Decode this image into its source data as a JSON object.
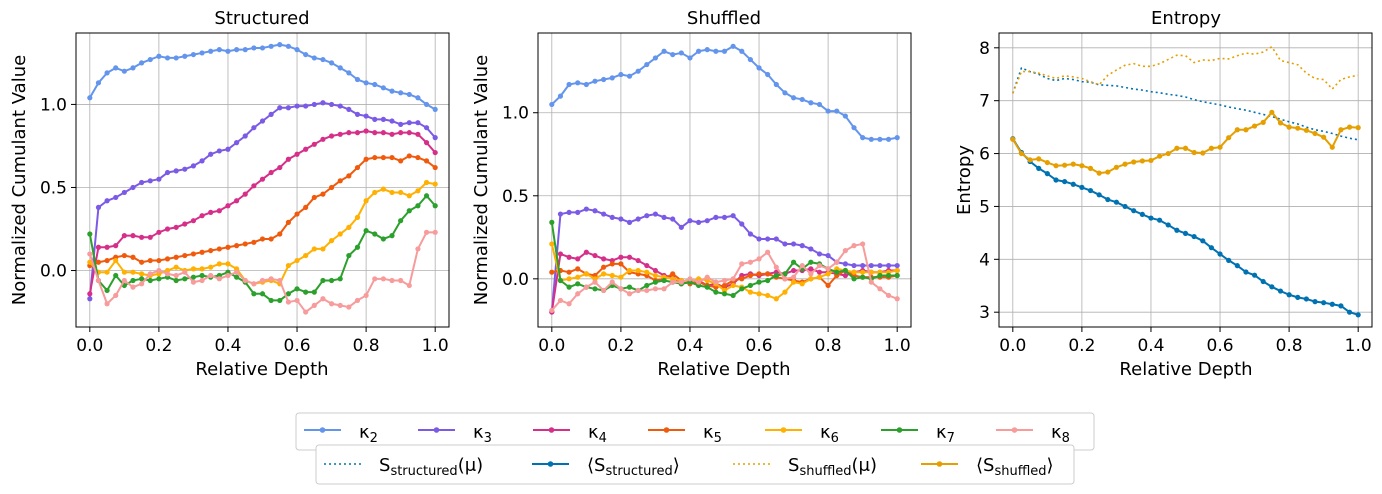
{
  "chart_data": [
    {
      "type": "line",
      "title": "Structured",
      "xlabel": "Relative Depth",
      "ylabel": "Normalized Cumulant Value",
      "xlim": [
        -0.04,
        1.04
      ],
      "ylim": [
        -0.34,
        1.43
      ],
      "xticks": [
        0.0,
        0.2,
        0.4,
        0.6,
        0.8,
        1.0
      ],
      "xtick_labels": [
        "0.0",
        "0.2",
        "0.4",
        "0.6",
        "0.8",
        "1.0"
      ],
      "yticks": [
        0.0,
        0.5,
        1.0
      ],
      "ytick_labels": [
        "0.0",
        "0.5",
        "1.0"
      ],
      "grid": true,
      "series": [
        {
          "name": "kappa_2",
          "color": "#6495ED",
          "marker": true,
          "style": "solid",
          "y": [
            1.04,
            1.13,
            1.19,
            1.22,
            1.2,
            1.22,
            1.25,
            1.27,
            1.29,
            1.28,
            1.28,
            1.29,
            1.3,
            1.31,
            1.32,
            1.33,
            1.32,
            1.33,
            1.33,
            1.34,
            1.34,
            1.35,
            1.36,
            1.35,
            1.33,
            1.3,
            1.28,
            1.27,
            1.25,
            1.22,
            1.19,
            1.15,
            1.13,
            1.12,
            1.1,
            1.08,
            1.07,
            1.06,
            1.04,
            1.0,
            0.97
          ]
        },
        {
          "name": "kappa_3",
          "color": "#7B5BE6",
          "marker": true,
          "style": "solid",
          "y": [
            -0.17,
            0.38,
            0.42,
            0.44,
            0.47,
            0.5,
            0.53,
            0.54,
            0.55,
            0.59,
            0.6,
            0.61,
            0.63,
            0.66,
            0.7,
            0.72,
            0.73,
            0.77,
            0.81,
            0.86,
            0.9,
            0.94,
            0.98,
            0.98,
            0.99,
            0.99,
            1.0,
            1.01,
            1.0,
            0.99,
            0.97,
            0.94,
            0.93,
            0.91,
            0.91,
            0.9,
            0.88,
            0.89,
            0.89,
            0.86,
            0.8
          ]
        },
        {
          "name": "kappa_4",
          "color": "#D62F8A",
          "marker": true,
          "style": "solid",
          "y": [
            -0.14,
            0.14,
            0.14,
            0.15,
            0.21,
            0.21,
            0.2,
            0.2,
            0.23,
            0.25,
            0.26,
            0.28,
            0.3,
            0.33,
            0.35,
            0.36,
            0.39,
            0.42,
            0.46,
            0.51,
            0.55,
            0.59,
            0.62,
            0.67,
            0.7,
            0.73,
            0.76,
            0.79,
            0.81,
            0.82,
            0.83,
            0.83,
            0.84,
            0.83,
            0.83,
            0.82,
            0.83,
            0.83,
            0.82,
            0.77,
            0.71
          ]
        },
        {
          "name": "kappa_5",
          "color": "#F05A0C",
          "marker": true,
          "style": "solid",
          "y": [
            0.03,
            0.05,
            0.06,
            0.08,
            0.09,
            0.08,
            0.05,
            0.06,
            0.06,
            0.07,
            0.08,
            0.09,
            0.1,
            0.11,
            0.12,
            0.13,
            0.14,
            0.15,
            0.16,
            0.17,
            0.19,
            0.19,
            0.22,
            0.29,
            0.34,
            0.38,
            0.44,
            0.46,
            0.5,
            0.54,
            0.57,
            0.62,
            0.67,
            0.68,
            0.68,
            0.68,
            0.66,
            0.69,
            0.68,
            0.66,
            0.62
          ]
        },
        {
          "name": "kappa_6",
          "color": "#FFB000",
          "marker": true,
          "style": "solid",
          "y": [
            0.05,
            -0.01,
            -0.01,
            0.06,
            -0.01,
            -0.01,
            -0.02,
            -0.03,
            -0.02,
            0.0,
            0.02,
            0.0,
            0.01,
            0.01,
            0.02,
            0.04,
            0.04,
            0.01,
            -0.06,
            -0.08,
            -0.07,
            -0.06,
            -0.08,
            0.03,
            0.06,
            0.09,
            0.13,
            0.13,
            0.18,
            0.22,
            0.26,
            0.32,
            0.42,
            0.47,
            0.49,
            0.47,
            0.47,
            0.45,
            0.48,
            0.53,
            0.52
          ]
        },
        {
          "name": "kappa_7",
          "color": "#2CA02C",
          "marker": true,
          "style": "solid",
          "y": [
            0.22,
            -0.06,
            -0.12,
            -0.03,
            -0.09,
            -0.06,
            -0.05,
            -0.06,
            -0.05,
            -0.04,
            -0.06,
            -0.05,
            -0.04,
            -0.03,
            -0.04,
            -0.03,
            -0.01,
            -0.04,
            -0.07,
            -0.14,
            -0.14,
            -0.18,
            -0.18,
            -0.14,
            -0.11,
            -0.13,
            -0.13,
            -0.06,
            -0.06,
            -0.05,
            0.09,
            0.14,
            0.24,
            0.22,
            0.19,
            0.21,
            0.3,
            0.36,
            0.39,
            0.45,
            0.39
          ]
        },
        {
          "name": "kappa_8",
          "color": "#F79B9B",
          "marker": true,
          "style": "solid",
          "y": [
            0.1,
            -0.06,
            -0.2,
            -0.15,
            -0.06,
            -0.1,
            -0.08,
            -0.02,
            0.0,
            -0.02,
            -0.03,
            -0.01,
            -0.07,
            -0.06,
            -0.03,
            -0.05,
            -0.03,
            -0.01,
            -0.06,
            -0.08,
            -0.06,
            -0.05,
            -0.06,
            -0.19,
            -0.18,
            -0.25,
            -0.21,
            -0.17,
            -0.2,
            -0.21,
            -0.22,
            -0.18,
            -0.15,
            -0.05,
            -0.05,
            -0.06,
            -0.06,
            -0.09,
            0.13,
            0.23,
            0.23
          ]
        }
      ]
    },
    {
      "type": "line",
      "title": "Shuffled",
      "xlabel": "Relative Depth",
      "ylabel": "Normalized Cumulant Value",
      "xlim": [
        -0.04,
        1.04
      ],
      "ylim": [
        -0.29,
        1.48
      ],
      "xticks": [
        0.0,
        0.2,
        0.4,
        0.6,
        0.8,
        1.0
      ],
      "xtick_labels": [
        "0.0",
        "0.2",
        "0.4",
        "0.6",
        "0.8",
        "1.0"
      ],
      "yticks": [
        0.0,
        0.5,
        1.0
      ],
      "ytick_labels": [
        "0.0",
        "0.5",
        "1.0"
      ],
      "grid": true,
      "series": [
        {
          "name": "kappa_2",
          "color": "#6495ED",
          "marker": true,
          "style": "solid",
          "y": [
            1.05,
            1.1,
            1.17,
            1.18,
            1.17,
            1.19,
            1.2,
            1.21,
            1.23,
            1.22,
            1.25,
            1.29,
            1.33,
            1.37,
            1.35,
            1.36,
            1.33,
            1.37,
            1.38,
            1.37,
            1.37,
            1.4,
            1.37,
            1.32,
            1.27,
            1.23,
            1.17,
            1.12,
            1.09,
            1.08,
            1.06,
            1.05,
            1.01,
            1.01,
            0.98,
            0.91,
            0.85,
            0.84,
            0.84,
            0.84,
            0.85
          ]
        },
        {
          "name": "kappa_3",
          "color": "#7B5BE6",
          "marker": true,
          "style": "solid",
          "y": [
            -0.2,
            0.39,
            0.4,
            0.4,
            0.42,
            0.41,
            0.39,
            0.37,
            0.36,
            0.34,
            0.36,
            0.38,
            0.39,
            0.37,
            0.36,
            0.31,
            0.35,
            0.34,
            0.35,
            0.37,
            0.37,
            0.38,
            0.33,
            0.27,
            0.24,
            0.24,
            0.24,
            0.21,
            0.21,
            0.2,
            0.18,
            0.15,
            0.14,
            0.1,
            0.09,
            0.08,
            0.08,
            0.08,
            0.08,
            0.08,
            0.08
          ]
        },
        {
          "name": "kappa_4",
          "color": "#D62F8A",
          "marker": true,
          "style": "solid",
          "y": [
            -0.2,
            0.15,
            0.13,
            0.12,
            0.16,
            0.14,
            0.12,
            0.11,
            0.13,
            0.13,
            0.11,
            0.08,
            0.05,
            0.02,
            0.01,
            -0.03,
            -0.02,
            -0.01,
            -0.04,
            -0.03,
            -0.05,
            -0.03,
            0.02,
            0.03,
            0.02,
            0.03,
            0.04,
            0.03,
            0.05,
            0.05,
            0.06,
            0.04,
            0.04,
            0.03,
            0.02,
            0.04,
            0.05,
            0.04,
            0.04,
            0.05,
            0.05
          ]
        },
        {
          "name": "kappa_5",
          "color": "#F05A0C",
          "marker": true,
          "style": "solid",
          "y": [
            0.04,
            0.05,
            0.04,
            0.06,
            0.03,
            0.02,
            0.07,
            0.09,
            0.09,
            0.04,
            0.03,
            0.02,
            -0.01,
            0.0,
            0.03,
            -0.01,
            -0.03,
            -0.02,
            -0.04,
            -0.05,
            -0.04,
            -0.01,
            0.0,
            0.02,
            0.03,
            0.03,
            0.01,
            0.0,
            -0.01,
            -0.02,
            0.0,
            0.01,
            -0.04,
            0.02,
            0.05,
            0.02,
            0.01,
            0.01,
            0.01,
            0.01,
            0.02
          ]
        },
        {
          "name": "kappa_6",
          "color": "#FFB000",
          "marker": true,
          "style": "solid",
          "y": [
            0.21,
            -0.01,
            0.0,
            0.01,
            0.03,
            0.0,
            0.03,
            0.02,
            0.01,
            0.05,
            0.05,
            0.04,
            0.02,
            0.01,
            0.0,
            -0.01,
            -0.02,
            0.0,
            -0.01,
            -0.03,
            -0.07,
            -0.04,
            -0.05,
            -0.08,
            -0.09,
            -0.1,
            -0.12,
            -0.08,
            -0.02,
            -0.03,
            0.0,
            0.01,
            0.03,
            0.06,
            0.05,
            0.04,
            0.04,
            0.04,
            0.04,
            0.04,
            0.05
          ]
        },
        {
          "name": "kappa_7",
          "color": "#2CA02C",
          "marker": true,
          "style": "solid",
          "y": [
            0.34,
            -0.01,
            -0.05,
            -0.03,
            -0.05,
            -0.06,
            -0.07,
            -0.04,
            -0.06,
            -0.05,
            -0.07,
            -0.04,
            -0.02,
            -0.01,
            -0.02,
            -0.03,
            -0.02,
            -0.04,
            -0.05,
            -0.08,
            -0.09,
            -0.1,
            -0.06,
            -0.04,
            -0.02,
            -0.01,
            0.02,
            0.03,
            0.1,
            0.06,
            0.1,
            0.09,
            0.06,
            0.04,
            0.05,
            0.0,
            0.01,
            0.0,
            0.02,
            0.02,
            0.02
          ]
        },
        {
          "name": "kappa_8",
          "color": "#F79B9B",
          "marker": true,
          "style": "solid",
          "y": [
            -0.19,
            -0.13,
            -0.15,
            -0.09,
            -0.05,
            -0.02,
            -0.07,
            -0.02,
            -0.06,
            -0.09,
            -0.07,
            -0.07,
            -0.06,
            -0.06,
            -0.02,
            -0.02,
            0.0,
            -0.02,
            0.01,
            -0.02,
            -0.01,
            0.0,
            0.09,
            0.1,
            0.12,
            0.16,
            0.07,
            0.0,
            0.01,
            0.08,
            0.03,
            0.08,
            0.06,
            0.1,
            0.17,
            0.2,
            0.21,
            -0.02,
            -0.06,
            -0.1,
            -0.12
          ]
        }
      ]
    },
    {
      "type": "line",
      "title": "Entropy",
      "xlabel": "Relative Depth",
      "ylabel": "Entropy",
      "xlim": [
        -0.04,
        1.04
      ],
      "ylim": [
        2.72,
        8.28
      ],
      "xticks": [
        0.0,
        0.2,
        0.4,
        0.6,
        0.8,
        1.0
      ],
      "xtick_labels": [
        "0.0",
        "0.2",
        "0.4",
        "0.6",
        "0.8",
        "1.0"
      ],
      "yticks": [
        3,
        4,
        5,
        6,
        7,
        8
      ],
      "ytick_labels": [
        "3",
        "4",
        "5",
        "6",
        "7",
        "8"
      ],
      "grid": true,
      "series": [
        {
          "name": "S_structured(mu)",
          "color": "#0072B2",
          "marker": false,
          "style": "dotted",
          "y": [
            7.14,
            7.62,
            7.55,
            7.5,
            7.42,
            7.38,
            7.42,
            7.4,
            7.36,
            7.35,
            7.3,
            7.29,
            7.28,
            7.25,
            7.22,
            7.2,
            7.17,
            7.15,
            7.12,
            7.1,
            7.07,
            7.02,
            6.98,
            6.95,
            6.92,
            6.88,
            6.85,
            6.82,
            6.78,
            6.74,
            6.7,
            6.65,
            6.6,
            6.56,
            6.5,
            6.45,
            6.42,
            6.38,
            6.33,
            6.29,
            6.26
          ]
        },
        {
          "name": "<S_structured>",
          "color": "#0072B2",
          "marker": true,
          "style": "solid",
          "y": [
            6.28,
            6.02,
            5.85,
            5.72,
            5.62,
            5.5,
            5.47,
            5.42,
            5.36,
            5.3,
            5.22,
            5.13,
            5.08,
            5.0,
            4.92,
            4.85,
            4.78,
            4.74,
            4.65,
            4.55,
            4.49,
            4.43,
            4.35,
            4.22,
            4.1,
            3.98,
            3.88,
            3.76,
            3.7,
            3.58,
            3.48,
            3.4,
            3.33,
            3.28,
            3.25,
            3.2,
            3.18,
            3.15,
            3.12,
            3.0,
            2.95
          ]
        },
        {
          "name": "S_shuffled(mu)",
          "color": "#E69F00",
          "marker": false,
          "style": "dotted",
          "y": [
            7.14,
            7.55,
            7.55,
            7.52,
            7.47,
            7.42,
            7.47,
            7.45,
            7.42,
            7.36,
            7.3,
            7.48,
            7.58,
            7.67,
            7.7,
            7.65,
            7.65,
            7.7,
            7.78,
            7.86,
            7.85,
            7.72,
            7.77,
            7.76,
            7.8,
            7.79,
            7.85,
            7.9,
            7.88,
            7.92,
            8.02,
            7.76,
            7.72,
            7.68,
            7.52,
            7.42,
            7.4,
            7.22,
            7.4,
            7.45,
            7.48
          ]
        },
        {
          "name": "<S_shuffled>",
          "color": "#E69F00",
          "marker": true,
          "style": "solid",
          "y": [
            6.27,
            6.0,
            5.88,
            5.9,
            5.83,
            5.77,
            5.78,
            5.8,
            5.77,
            5.72,
            5.63,
            5.65,
            5.74,
            5.8,
            5.84,
            5.86,
            5.87,
            5.95,
            6.0,
            6.1,
            6.1,
            6.02,
            6.01,
            6.1,
            6.12,
            6.3,
            6.45,
            6.45,
            6.52,
            6.59,
            6.78,
            6.58,
            6.5,
            6.48,
            6.44,
            6.38,
            6.31,
            6.12,
            6.45,
            6.5,
            6.49
          ]
        }
      ]
    }
  ],
  "legend1": [
    {
      "symbol": "κ",
      "sub": "2",
      "color": "#6495ED"
    },
    {
      "symbol": "κ",
      "sub": "3",
      "color": "#7B5BE6"
    },
    {
      "symbol": "κ",
      "sub": "4",
      "color": "#D62F8A"
    },
    {
      "symbol": "κ",
      "sub": "5",
      "color": "#F05A0C"
    },
    {
      "symbol": "κ",
      "sub": "6",
      "color": "#FFB000"
    },
    {
      "symbol": "κ",
      "sub": "7",
      "color": "#2CA02C"
    },
    {
      "symbol": "κ",
      "sub": "8",
      "color": "#F79B9B"
    }
  ],
  "legend2": [
    {
      "pre": "S",
      "sub": "structured",
      "post": "(μ)",
      "color": "#0072B2",
      "style": "dotted",
      "marker": false
    },
    {
      "pre": "⟨S",
      "sub": "structured",
      "post": "⟩",
      "color": "#0072B2",
      "style": "solid",
      "marker": true
    },
    {
      "pre": "S",
      "sub": "shuffled",
      "post": "(μ)",
      "color": "#E69F00",
      "style": "dotted",
      "marker": false
    },
    {
      "pre": "⟨S",
      "sub": "shuffled",
      "post": "⟩",
      "color": "#E69F00",
      "style": "solid",
      "marker": true
    }
  ]
}
